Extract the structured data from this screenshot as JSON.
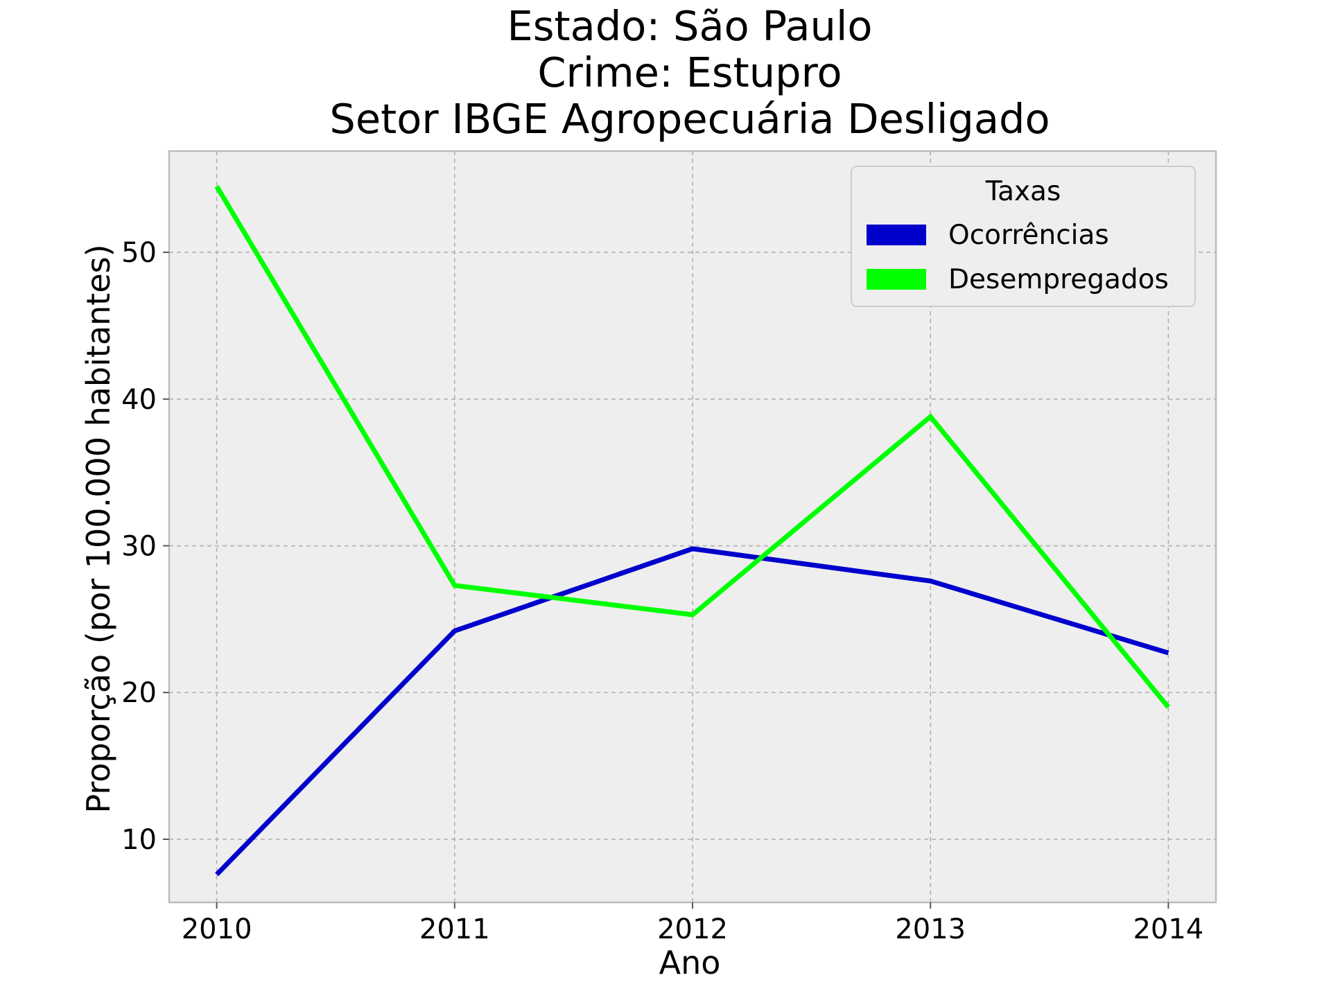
{
  "chart_data": {
    "type": "line",
    "title_lines": [
      "Estado: São Paulo",
      "Crime: Estupro",
      "Setor IBGE  Agropecuária   Desligado"
    ],
    "xlabel": "Ano",
    "ylabel": "Proporção (por 100.000 habitantes)",
    "x": [
      2010,
      2011,
      2012,
      2013,
      2014
    ],
    "x_tick_labels": [
      "2010",
      "2011",
      "2012",
      "2013",
      "2014"
    ],
    "y_ticks": [
      10,
      20,
      30,
      40,
      50
    ],
    "y_tick_labels": [
      "10",
      "20",
      "30",
      "40",
      "50"
    ],
    "xlim": [
      2009.8,
      2014.2
    ],
    "ylim": [
      5.7,
      56.9
    ],
    "grid": true,
    "legend": {
      "title": "Taxas",
      "position": "top-right"
    },
    "series": [
      {
        "name": "Ocorrências",
        "color": "#0000cc",
        "values": [
          7.6,
          24.2,
          29.8,
          27.6,
          22.7
        ]
      },
      {
        "name": "Desempregados",
        "color": "#00ff00",
        "values": [
          54.5,
          27.3,
          25.3,
          38.8,
          19.0
        ]
      }
    ],
    "colors": {
      "plot_background": "#eeeeee",
      "frame": "#bcbcbc"
    }
  }
}
